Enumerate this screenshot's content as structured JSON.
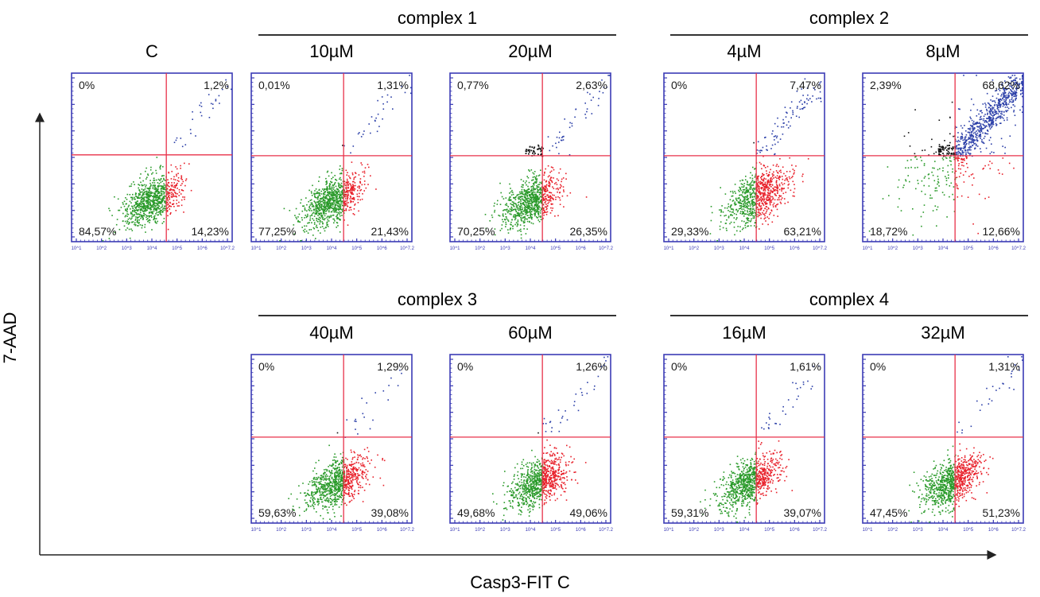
{
  "axes": {
    "ylabel": "7-AAD",
    "xlabel": "Casp3-FIT C",
    "tick_labels": [
      "10^1",
      "10^2",
      "10^3",
      "10^4",
      "10^5",
      "10^6",
      "10^7.2"
    ]
  },
  "colors": {
    "frame": "#3b3bb5",
    "gate": "#e8304a",
    "live": "#2a9a2a",
    "early_apoptotic": "#e8202a",
    "late_apoptotic": "#2b3fa8",
    "necrotic": "#111111",
    "group_rule": "#333333"
  },
  "groups": [
    {
      "title": "complex 1"
    },
    {
      "title": "complex 2"
    },
    {
      "title": "complex 3"
    },
    {
      "title": "complex 4"
    }
  ],
  "chart_data": [
    {
      "type": "scatter",
      "title": "C",
      "quadrants": {
        "upper_left": "0%",
        "upper_right": "1,2%",
        "lower_left": "84,57%",
        "lower_right": "14,23%"
      }
    },
    {
      "type": "scatter",
      "title": "10µM",
      "quadrants": {
        "upper_left": "0,01%",
        "upper_right": "1,31%",
        "lower_left": "77,25%",
        "lower_right": "21,43%"
      }
    },
    {
      "type": "scatter",
      "title": "20µM",
      "quadrants": {
        "upper_left": "0,77%",
        "upper_right": "2,63%",
        "lower_left": "70,25%",
        "lower_right": "26,35%"
      }
    },
    {
      "type": "scatter",
      "title": "4µM",
      "quadrants": {
        "upper_left": "0%",
        "upper_right": "7,47%",
        "lower_left": "29,33%",
        "lower_right": "63,21%"
      }
    },
    {
      "type": "scatter",
      "title": "8µM",
      "quadrants": {
        "upper_left": "2,39%",
        "upper_right": "68,62%",
        "lower_left": "18,72%",
        "lower_right": "12,66%"
      }
    },
    {
      "type": "scatter",
      "title": "40µM",
      "quadrants": {
        "upper_left": "0%",
        "upper_right": "1,29%",
        "lower_left": "59,63%",
        "lower_right": "39,08%"
      }
    },
    {
      "type": "scatter",
      "title": "60µM",
      "quadrants": {
        "upper_left": "0%",
        "upper_right": "1,26%",
        "lower_left": "49,68%",
        "lower_right": "49,06%"
      }
    },
    {
      "type": "scatter",
      "title": "16µM",
      "quadrants": {
        "upper_left": "0%",
        "upper_right": "1,61%",
        "lower_left": "59,31%",
        "lower_right": "39,07%"
      }
    },
    {
      "type": "scatter",
      "title": "32µM",
      "quadrants": {
        "upper_left": "0%",
        "upper_right": "1,31%",
        "lower_left": "47,45%",
        "lower_right": "51,23%"
      }
    }
  ]
}
